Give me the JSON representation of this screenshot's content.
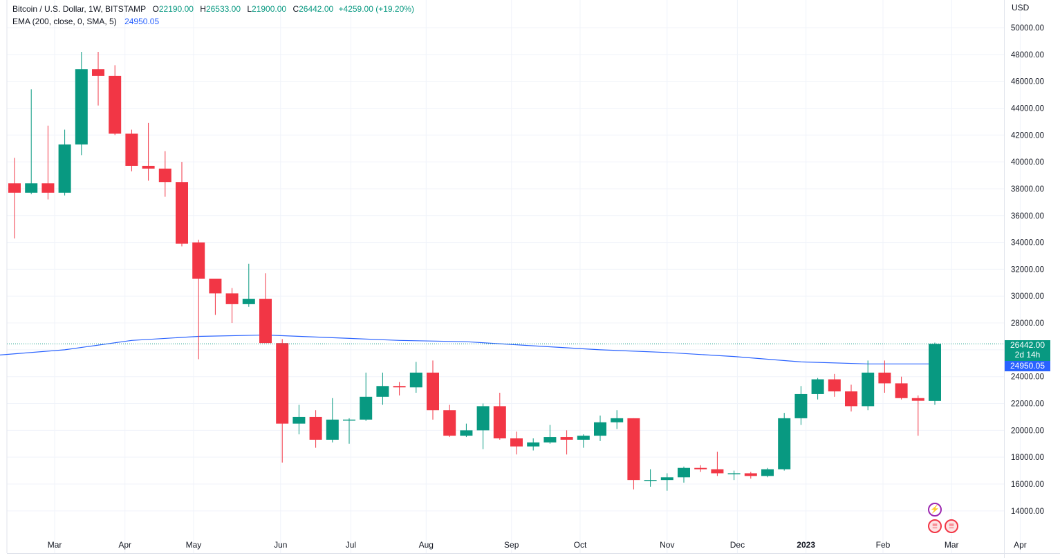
{
  "header": {
    "symbol": "Bitcoin / U.S. Dollar, 1W, BITSTAMP",
    "ohlc": {
      "o_label": "O",
      "o": "22190.00",
      "h_label": "H",
      "h": "26533.00",
      "l_label": "L",
      "l": "21900.00",
      "c_label": "C",
      "c": "26442.00",
      "change": "+4259.00 (+19.20%)"
    },
    "ema_label": "EMA (200, close, 0, SMA, 5)",
    "ema_value": "24950.05"
  },
  "axis": {
    "currency": "USD",
    "last_price_tag": "26442.00",
    "countdown_tag": "2d 14h",
    "ema_tag": "24950.05"
  },
  "icons": {
    "event_bolt": "lightning-icon",
    "event_flag": "us-flag-icon"
  },
  "colors": {
    "up": "#089981",
    "down": "#f23645",
    "ema": "#2962ff",
    "grid": "#f0f3fa",
    "text": "#131722"
  },
  "chart_data": {
    "type": "candlestick",
    "title": "Bitcoin / U.S. Dollar, 1W, BITSTAMP",
    "ylim": [
      12500,
      51000
    ],
    "y_ticks": [
      "14000.00",
      "16000.00",
      "18000.00",
      "20000.00",
      "22000.00",
      "24000.00",
      "26000.00",
      "28000.00",
      "30000.00",
      "32000.00",
      "34000.00",
      "36000.00",
      "38000.00",
      "40000.00",
      "42000.00",
      "44000.00",
      "46000.00",
      "48000.00",
      "50000.00"
    ],
    "x_ticks": [
      "Mar",
      "Apr",
      "May",
      "Jun",
      "Jul",
      "Aug",
      "Sep",
      "Oct",
      "Nov",
      "Dec",
      "2023",
      "Feb",
      "Mar",
      "Apr"
    ],
    "x_tick_weeks": [
      2.4,
      6.6,
      10.7,
      15.9,
      20.1,
      24.6,
      29.7,
      33.8,
      39.0,
      43.2,
      47.3,
      51.9,
      56.0,
      60.1
    ],
    "grid": true,
    "candles": [
      {
        "o": 38400,
        "h": 40300,
        "l": 34300,
        "c": 37700
      },
      {
        "o": 37700,
        "h": 45400,
        "l": 37600,
        "c": 38400
      },
      {
        "o": 38400,
        "h": 42700,
        "l": 37200,
        "c": 37700
      },
      {
        "o": 37700,
        "h": 42400,
        "l": 37500,
        "c": 41300
      },
      {
        "o": 41300,
        "h": 48200,
        "l": 40500,
        "c": 46900
      },
      {
        "o": 46900,
        "h": 48200,
        "l": 44200,
        "c": 46400
      },
      {
        "o": 46400,
        "h": 47200,
        "l": 42000,
        "c": 42100
      },
      {
        "o": 42100,
        "h": 42400,
        "l": 39300,
        "c": 39700
      },
      {
        "o": 39700,
        "h": 42900,
        "l": 38600,
        "c": 39500
      },
      {
        "o": 39500,
        "h": 40800,
        "l": 37400,
        "c": 38500
      },
      {
        "o": 38500,
        "h": 40000,
        "l": 33700,
        "c": 33900
      },
      {
        "o": 34000,
        "h": 34200,
        "l": 25300,
        "c": 31300
      },
      {
        "o": 31300,
        "h": 31300,
        "l": 28600,
        "c": 30200
      },
      {
        "o": 30200,
        "h": 30600,
        "l": 28000,
        "c": 29400
      },
      {
        "o": 29400,
        "h": 32400,
        "l": 29200,
        "c": 29800
      },
      {
        "o": 29800,
        "h": 31700,
        "l": 26500,
        "c": 26500
      },
      {
        "o": 26500,
        "h": 26800,
        "l": 17600,
        "c": 20500
      },
      {
        "o": 20500,
        "h": 21900,
        "l": 19700,
        "c": 21000
      },
      {
        "o": 21000,
        "h": 21500,
        "l": 18700,
        "c": 19300
      },
      {
        "o": 19300,
        "h": 22400,
        "l": 19100,
        "c": 20800
      },
      {
        "o": 20800,
        "h": 20900,
        "l": 19000,
        "c": 20800
      },
      {
        "o": 20800,
        "h": 24300,
        "l": 20700,
        "c": 22500
      },
      {
        "o": 22500,
        "h": 24300,
        "l": 21900,
        "c": 23300
      },
      {
        "o": 23300,
        "h": 23600,
        "l": 22600,
        "c": 23200
      },
      {
        "o": 23200,
        "h": 25100,
        "l": 22800,
        "c": 24300
      },
      {
        "o": 24300,
        "h": 25200,
        "l": 20800,
        "c": 21500
      },
      {
        "o": 21500,
        "h": 21900,
        "l": 19500,
        "c": 19600
      },
      {
        "o": 19600,
        "h": 20500,
        "l": 19500,
        "c": 20000
      },
      {
        "o": 20000,
        "h": 22000,
        "l": 18600,
        "c": 21800
      },
      {
        "o": 21800,
        "h": 22800,
        "l": 19300,
        "c": 19400
      },
      {
        "o": 19400,
        "h": 19900,
        "l": 18200,
        "c": 18800
      },
      {
        "o": 18800,
        "h": 19400,
        "l": 18500,
        "c": 19100
      },
      {
        "o": 19100,
        "h": 20400,
        "l": 19000,
        "c": 19500
      },
      {
        "o": 19500,
        "h": 20000,
        "l": 18200,
        "c": 19300
      },
      {
        "o": 19300,
        "h": 19700,
        "l": 18700,
        "c": 19600
      },
      {
        "o": 19600,
        "h": 21100,
        "l": 19200,
        "c": 20600
      },
      {
        "o": 20600,
        "h": 21500,
        "l": 20100,
        "c": 20900
      },
      {
        "o": 20900,
        "h": 20900,
        "l": 15600,
        "c": 16300
      },
      {
        "o": 16300,
        "h": 17100,
        "l": 15800,
        "c": 16300
      },
      {
        "o": 16300,
        "h": 16800,
        "l": 15500,
        "c": 16500
      },
      {
        "o": 16500,
        "h": 17300,
        "l": 16100,
        "c": 17200
      },
      {
        "o": 17200,
        "h": 17400,
        "l": 16900,
        "c": 17100
      },
      {
        "o": 17100,
        "h": 18400,
        "l": 16600,
        "c": 16800
      },
      {
        "o": 16800,
        "h": 17000,
        "l": 16300,
        "c": 16800
      },
      {
        "o": 16800,
        "h": 16900,
        "l": 16400,
        "c": 16600
      },
      {
        "o": 16600,
        "h": 17200,
        "l": 16500,
        "c": 17100
      },
      {
        "o": 17100,
        "h": 21300,
        "l": 17000,
        "c": 20900
      },
      {
        "o": 20900,
        "h": 23300,
        "l": 20400,
        "c": 22700
      },
      {
        "o": 22700,
        "h": 23900,
        "l": 22300,
        "c": 23800
      },
      {
        "o": 23800,
        "h": 24200,
        "l": 22500,
        "c": 22900
      },
      {
        "o": 22900,
        "h": 23400,
        "l": 21400,
        "c": 21800
      },
      {
        "o": 21800,
        "h": 25200,
        "l": 21500,
        "c": 24300
      },
      {
        "o": 24300,
        "h": 25200,
        "l": 22800,
        "c": 23500
      },
      {
        "o": 23500,
        "h": 24000,
        "l": 22300,
        "c": 22400
      },
      {
        "o": 22400,
        "h": 22600,
        "l": 19600,
        "c": 22200
      },
      {
        "o": 22190,
        "h": 26533,
        "l": 21900,
        "c": 26442
      }
    ],
    "ema": {
      "name": "EMA (200, close, 0, SMA, 5)",
      "weeks": [
        -1,
        3,
        7,
        11,
        15,
        19,
        23,
        27,
        31,
        35,
        39,
        43,
        47,
        51,
        55
      ],
      "values": [
        25600,
        26000,
        26700,
        27000,
        27100,
        26900,
        26700,
        26600,
        26300,
        26000,
        25800,
        25500,
        25100,
        24950,
        24950
      ]
    }
  }
}
